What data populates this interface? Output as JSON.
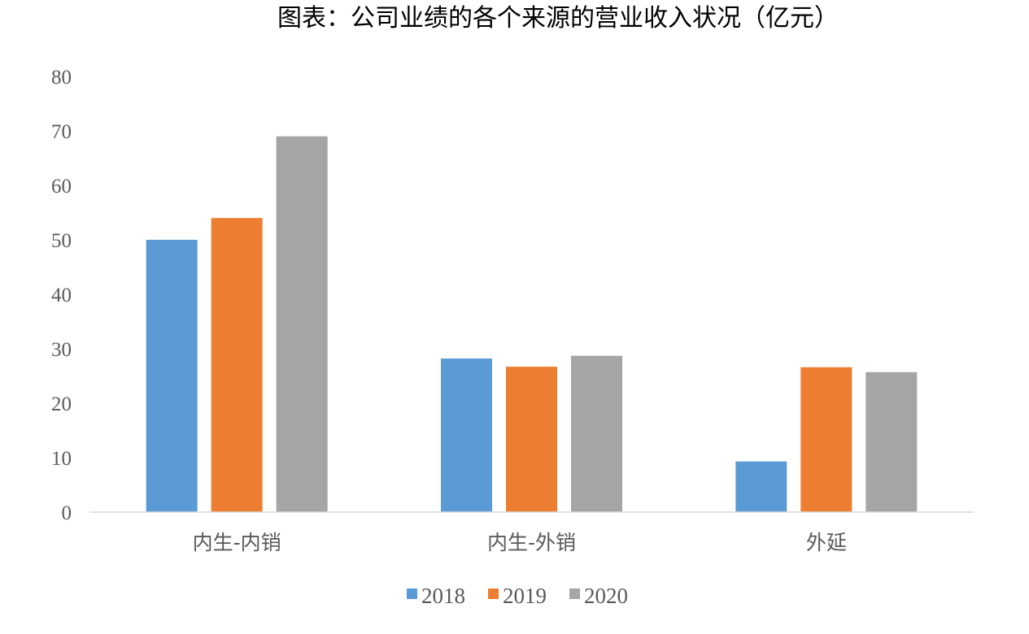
{
  "chart_data": {
    "type": "bar",
    "title": "图表：公司业绩的各个来源的营业收入状况（亿元）",
    "categories": [
      "内生-内销",
      "内生-外销",
      "外延"
    ],
    "series": [
      {
        "name": "2018",
        "values": [
          50.0,
          28.2,
          9.3
        ],
        "color": "#5B9BD5"
      },
      {
        "name": "2019",
        "values": [
          54.0,
          26.7,
          26.6
        ],
        "color": "#ED7D31"
      },
      {
        "name": "2020",
        "values": [
          69.0,
          28.7,
          25.7
        ],
        "color": "#A5A5A5"
      }
    ],
    "ylim": [
      0,
      80
    ],
    "yticks": [
      "0",
      "10",
      "20",
      "30",
      "40",
      "50",
      "60",
      "70",
      "80"
    ],
    "xlabel": "",
    "ylabel": "",
    "grid": false,
    "legend": "bottom"
  }
}
